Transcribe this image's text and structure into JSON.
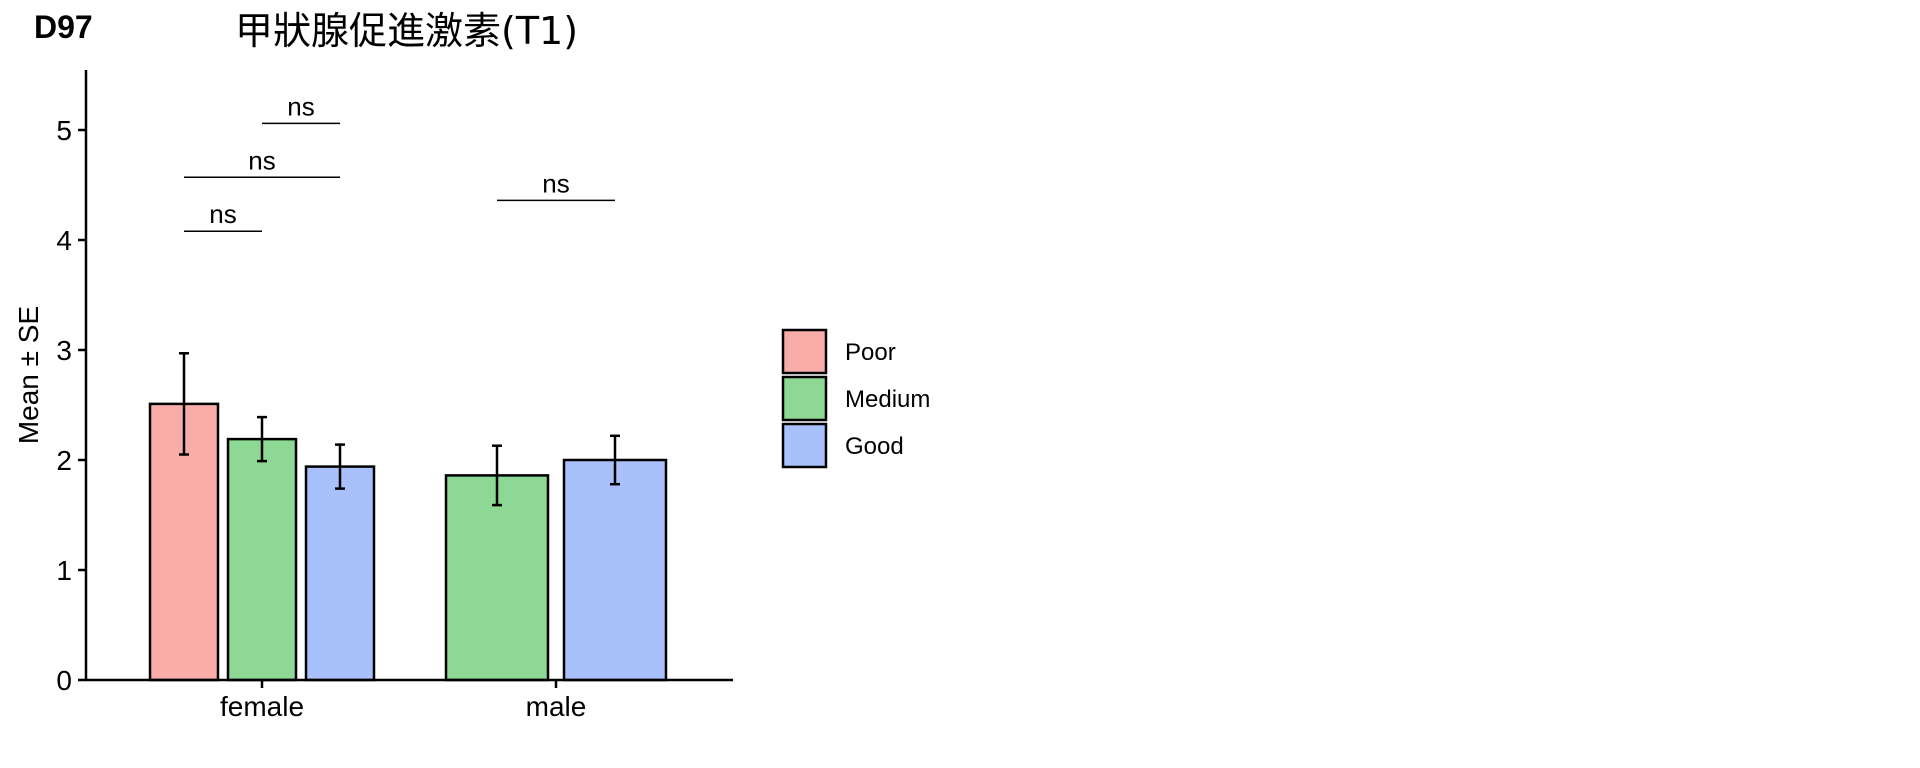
{
  "panel_label": "D97",
  "chart_data": {
    "type": "bar",
    "title": "甲狀腺促進激素(T1)",
    "xlabel": "",
    "ylabel": "Mean ± SE",
    "ylim": [
      0,
      5.55
    ],
    "yticks": [
      0,
      1,
      2,
      3,
      4,
      5
    ],
    "categories": [
      "female",
      "male"
    ],
    "grid": false,
    "legend_position": "right",
    "series": [
      {
        "name": "Poor",
        "color": "#F8ADA8",
        "values": [
          2.51,
          null
        ],
        "se": [
          0.46,
          null
        ]
      },
      {
        "name": "Medium",
        "color": "#8CD894",
        "values": [
          2.19,
          1.86
        ],
        "se": [
          0.2,
          0.27
        ]
      },
      {
        "name": "Good",
        "color": "#A8C1FC",
        "values": [
          1.94,
          2.0
        ],
        "se": [
          0.2,
          0.22
        ]
      }
    ],
    "annotations": [
      {
        "category": "female",
        "from": "Poor",
        "to": "Medium",
        "text": "ns",
        "y": 4.08
      },
      {
        "category": "female",
        "from": "Poor",
        "to": "Good",
        "text": "ns",
        "y": 4.57
      },
      {
        "category": "female",
        "from": "Medium",
        "to": "Good",
        "text": "ns",
        "y": 5.06
      },
      {
        "category": "male",
        "from": "Medium",
        "to": "Good",
        "text": "ns",
        "y": 4.36
      }
    ]
  }
}
